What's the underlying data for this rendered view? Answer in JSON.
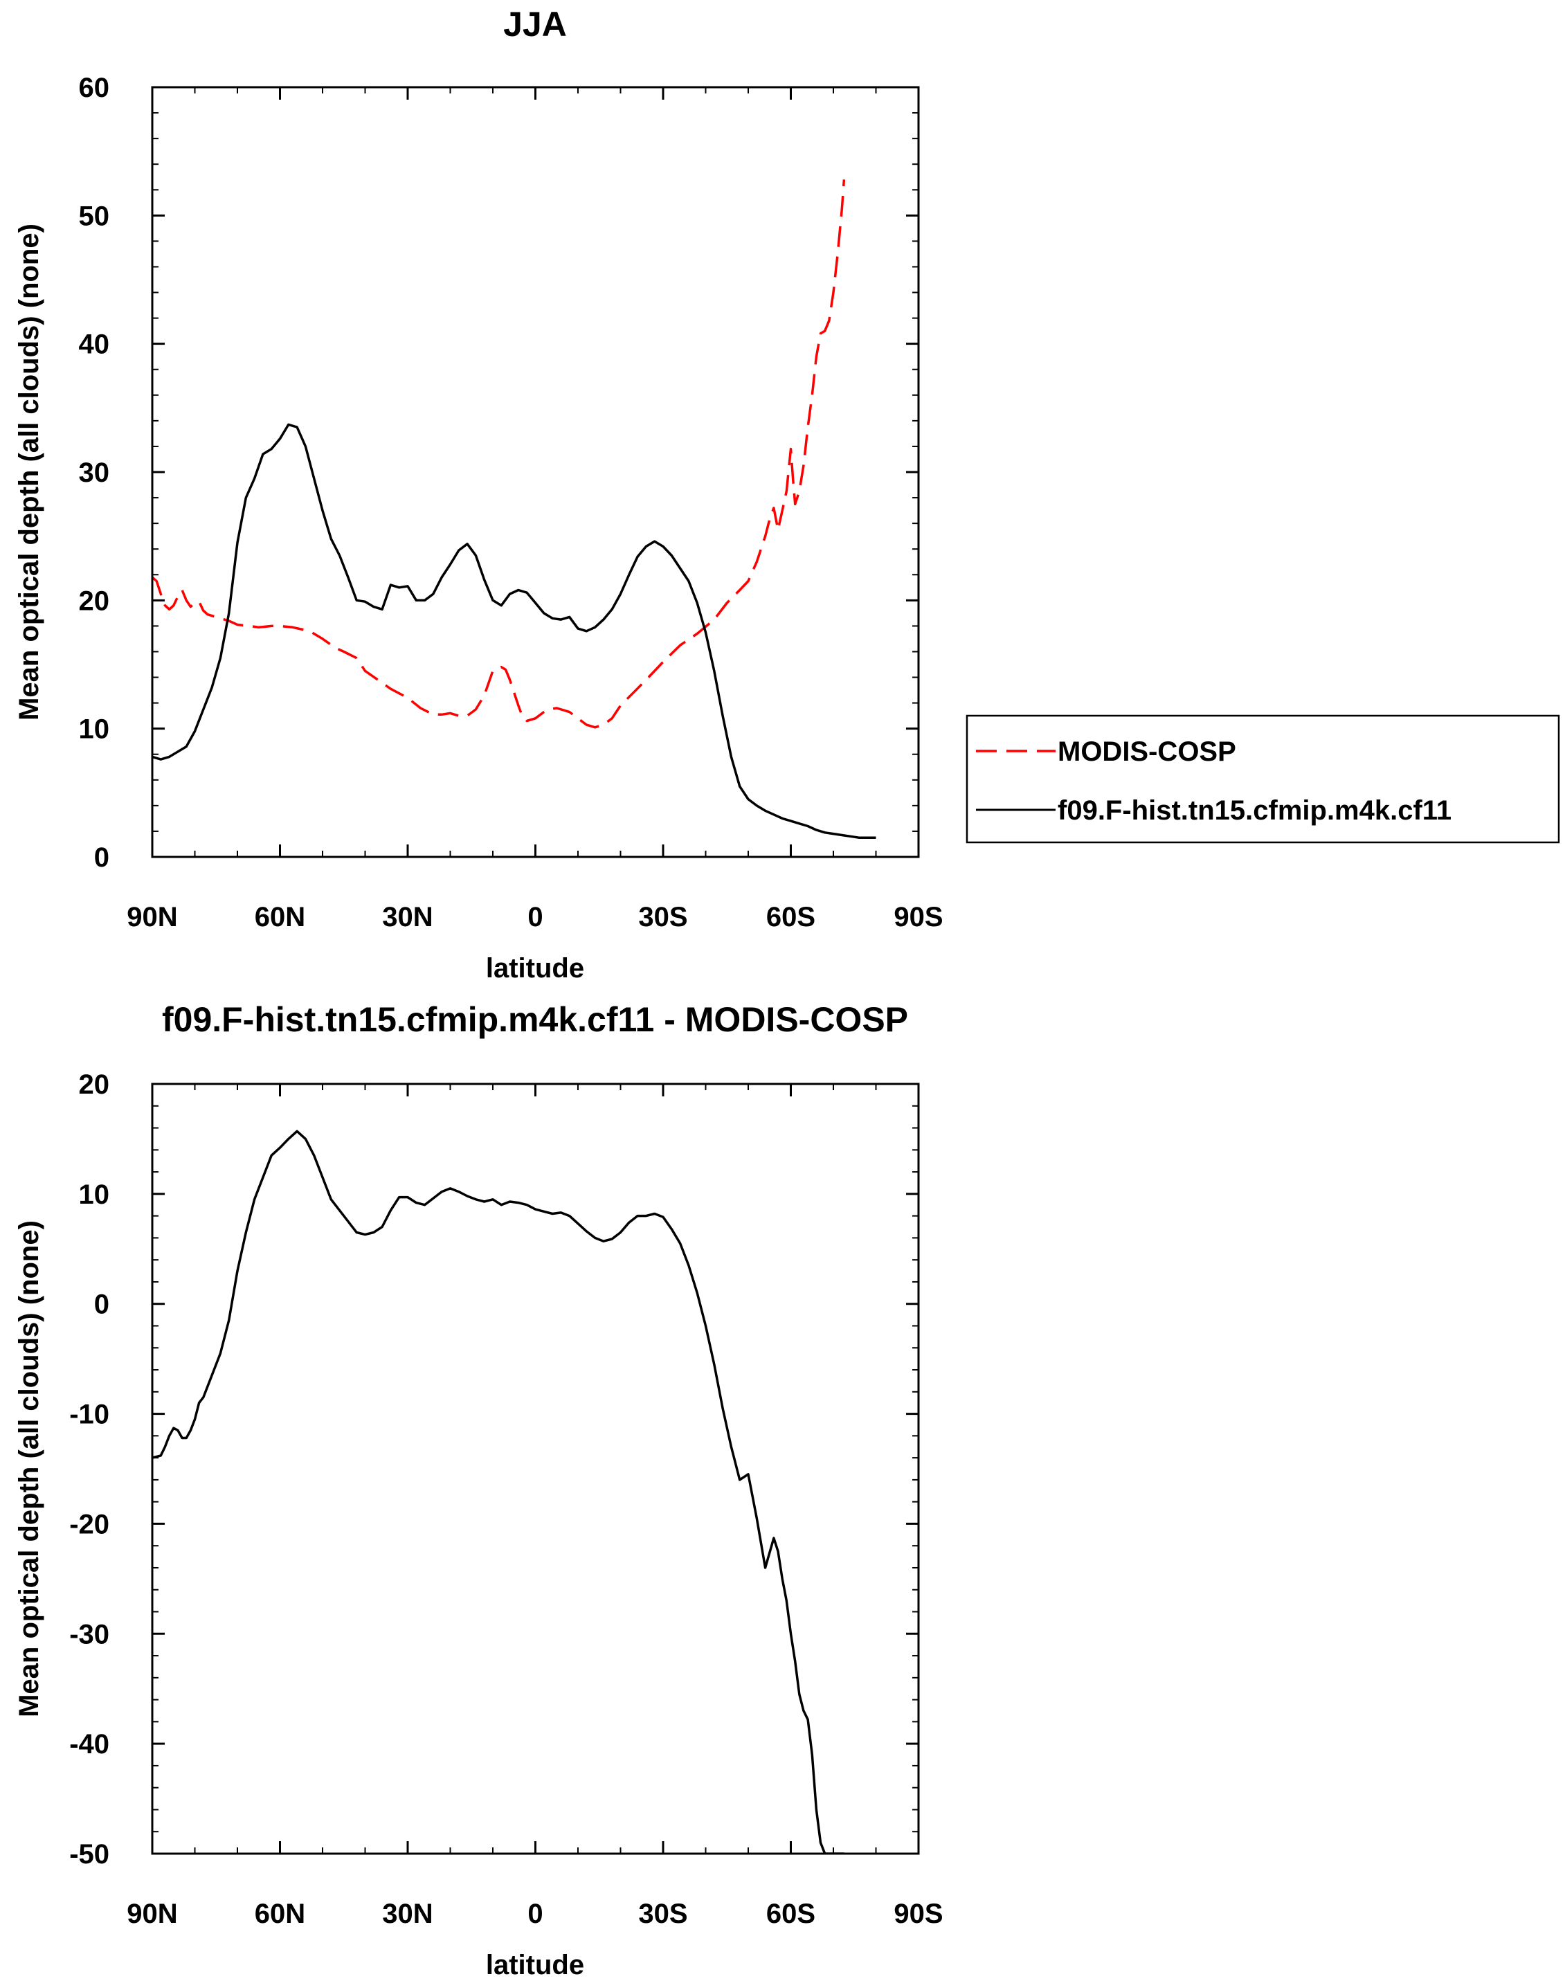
{
  "chart_data": [
    {
      "type": "line",
      "title": "JJA",
      "xlabel": "latitude",
      "ylabel": "Mean optical depth (all clouds) (none)",
      "xlim": [
        90,
        -90
      ],
      "ylim": [
        0,
        60
      ],
      "xticks": [
        90,
        60,
        30,
        0,
        -30,
        -60,
        -90
      ],
      "xtick_labels": [
        "90N",
        "60N",
        "30N",
        "0",
        "30S",
        "60S",
        "90S"
      ],
      "yticks": [
        0,
        10,
        20,
        30,
        40,
        50,
        60
      ],
      "ytick_labels": [
        "0",
        "10",
        "20",
        "30",
        "40",
        "50",
        "60"
      ],
      "legend": {
        "placement": "right",
        "entries": [
          "MODIS-COSP",
          "f09.F-hist.tn15.cfmip.m4k.cf11"
        ]
      },
      "series": [
        {
          "name": "MODIS-COSP",
          "color": "#ff0000",
          "dashed": true,
          "x": [
            90,
            89,
            88,
            87,
            86,
            85,
            84,
            83,
            82,
            81,
            80,
            79,
            78,
            77,
            75,
            72,
            70,
            67,
            65,
            62,
            60,
            57,
            53,
            50,
            47,
            45,
            42,
            40,
            37,
            34,
            30,
            27,
            24,
            22,
            20,
            18,
            16,
            14,
            12,
            10,
            8,
            7,
            6,
            4,
            3,
            2,
            0,
            -2,
            -3,
            -5,
            -8,
            -10,
            -12,
            -14,
            -16,
            -18,
            -20,
            -23,
            -26,
            -30,
            -34,
            -38,
            -42,
            -45,
            -48,
            -50,
            -52,
            -54,
            -55,
            -56,
            -57,
            -58,
            -59,
            -60,
            -60.5,
            -61,
            -62,
            -63,
            -64,
            -65,
            -66,
            -67,
            -68,
            -69,
            -70,
            -71,
            -72,
            -72.5
          ],
          "values": [
            21.8,
            21.5,
            20.5,
            19.6,
            19.3,
            19.6,
            20.3,
            20.8,
            20.0,
            19.5,
            19.8,
            19.9,
            19.2,
            18.9,
            18.7,
            18.4,
            18.1,
            18.0,
            17.9,
            18.0,
            18.0,
            17.9,
            17.6,
            17.0,
            16.3,
            16.0,
            15.5,
            14.5,
            13.8,
            13.1,
            12.4,
            11.6,
            11.1,
            11.1,
            11.2,
            11.0,
            11.0,
            11.5,
            12.6,
            14.5,
            14.8,
            14.6,
            13.8,
            11.8,
            10.9,
            10.6,
            10.8,
            11.3,
            11.5,
            11.6,
            11.3,
            10.8,
            10.3,
            10.1,
            10.3,
            10.8,
            11.8,
            12.8,
            13.8,
            15.2,
            16.5,
            17.4,
            18.5,
            19.8,
            20.8,
            21.5,
            23.0,
            25.0,
            26.3,
            27.2,
            25.5,
            27.0,
            28.5,
            31.8,
            29.5,
            27.5,
            28.5,
            30.5,
            33.5,
            36.0,
            39.0,
            40.8,
            41.0,
            41.8,
            44.0,
            47.0,
            50.5,
            52.8
          ]
        },
        {
          "name": "f09.F-hist.tn15.cfmip.m4k.cf11",
          "color": "#000000",
          "dashed": false,
          "x": [
            90,
            88,
            86,
            84,
            82,
            80,
            78,
            76,
            74,
            72,
            70,
            68,
            66,
            64,
            62,
            60,
            58,
            56,
            54,
            52,
            50,
            48,
            46,
            44,
            42,
            40,
            38,
            36,
            34,
            32,
            30,
            28,
            26,
            24,
            22,
            20,
            18,
            16,
            14,
            12,
            10,
            8,
            6,
            4,
            2,
            0,
            -2,
            -4,
            -6,
            -8,
            -10,
            -12,
            -14,
            -16,
            -18,
            -20,
            -22,
            -24,
            -26,
            -28,
            -30,
            -32,
            -34,
            -36,
            -38,
            -40,
            -42,
            -44,
            -46,
            -48,
            -50,
            -52,
            -54,
            -56,
            -58,
            -60,
            -62,
            -64,
            -66,
            -68,
            -70,
            -72,
            -74,
            -76,
            -78,
            -80
          ],
          "values": [
            7.8,
            7.6,
            7.8,
            8.2,
            8.6,
            9.8,
            11.5,
            13.2,
            15.5,
            19.0,
            24.5,
            28.0,
            29.5,
            31.4,
            31.8,
            32.6,
            33.7,
            33.5,
            32.0,
            29.5,
            27.0,
            24.8,
            23.5,
            21.8,
            20.0,
            19.9,
            19.5,
            19.3,
            21.2,
            21.0,
            21.1,
            20.0,
            20.0,
            20.5,
            21.8,
            22.8,
            23.9,
            24.4,
            23.5,
            21.6,
            20.0,
            19.6,
            20.5,
            20.8,
            20.6,
            19.8,
            19.0,
            18.6,
            18.5,
            18.7,
            17.8,
            17.6,
            17.9,
            18.5,
            19.3,
            20.5,
            22.0,
            23.4,
            24.2,
            24.6,
            24.2,
            23.5,
            22.5,
            21.5,
            19.8,
            17.5,
            14.5,
            11.0,
            7.8,
            5.5,
            4.5,
            4.0,
            3.6,
            3.3,
            3.0,
            2.8,
            2.6,
            2.4,
            2.1,
            1.9,
            1.8,
            1.7,
            1.6,
            1.5,
            1.5,
            1.5
          ]
        }
      ]
    },
    {
      "type": "line",
      "title": "f09.F-hist.tn15.cfmip.m4k.cf11 - MODIS-COSP",
      "xlabel": "latitude",
      "ylabel": "Mean optical depth (all clouds) (none)",
      "xlim": [
        90,
        -90
      ],
      "ylim": [
        -50,
        20
      ],
      "xticks": [
        90,
        60,
        30,
        0,
        -30,
        -60,
        -90
      ],
      "xtick_labels": [
        "90N",
        "60N",
        "30N",
        "0",
        "30S",
        "60S",
        "90S"
      ],
      "yticks": [
        -50,
        -40,
        -30,
        -20,
        -10,
        0,
        10,
        20
      ],
      "ytick_labels": [
        "-50",
        "-40",
        "-30",
        "-20",
        "-10",
        "0",
        "10",
        "20"
      ],
      "series": [
        {
          "name": "f09.F-hist.tn15.cfmip.m4k.cf11 - MODIS-COSP",
          "color": "#000000",
          "dashed": false,
          "x": [
            90,
            88,
            87,
            86,
            85,
            84,
            83,
            82,
            81,
            80,
            79,
            78,
            76,
            74,
            72,
            70,
            68,
            66,
            64,
            62,
            60,
            58,
            56,
            54,
            52,
            50,
            48,
            46,
            44,
            42,
            40,
            38,
            36,
            34,
            32,
            30,
            28,
            26,
            24,
            22,
            20,
            18,
            16,
            14,
            12,
            10,
            8,
            6,
            4,
            2,
            0,
            -2,
            -4,
            -6,
            -8,
            -10,
            -12,
            -14,
            -16,
            -18,
            -20,
            -22,
            -24,
            -26,
            -28,
            -30,
            -32,
            -34,
            -36,
            -38,
            -40,
            -42,
            -44,
            -46,
            -48,
            -50,
            -52,
            -54,
            -56,
            -57,
            -58,
            -59,
            -60,
            -61,
            -62,
            -63,
            -64,
            -65,
            -66,
            -67,
            -68,
            -69,
            -70,
            -71,
            -72,
            -72.5
          ],
          "values": [
            -14.0,
            -13.8,
            -13.0,
            -12.0,
            -11.3,
            -11.5,
            -12.2,
            -12.2,
            -11.5,
            -10.5,
            -9.0,
            -8.5,
            -6.5,
            -4.5,
            -1.5,
            3.0,
            6.5,
            9.5,
            11.5,
            13.5,
            14.2,
            15.0,
            15.7,
            15.0,
            13.5,
            11.5,
            9.5,
            8.5,
            7.5,
            6.5,
            6.3,
            6.5,
            7.0,
            8.5,
            9.7,
            9.7,
            9.2,
            9.0,
            9.6,
            10.2,
            10.5,
            10.2,
            9.8,
            9.5,
            9.3,
            9.5,
            9.0,
            9.3,
            9.2,
            9.0,
            8.6,
            8.4,
            8.2,
            8.3,
            8.0,
            7.3,
            6.6,
            6.0,
            5.7,
            5.9,
            6.5,
            7.4,
            8.0,
            8.0,
            8.2,
            7.9,
            6.8,
            5.5,
            3.5,
            1.0,
            -2.0,
            -5.5,
            -9.5,
            -13.0,
            -16.0,
            -15.5,
            -19.5,
            -24.0,
            -21.3,
            -22.5,
            -25.0,
            -27.0,
            -30.0,
            -32.5,
            -35.5,
            -37.0,
            -37.8,
            -41.0,
            -46.0,
            -49.0,
            -50.0,
            -50.0,
            -50.0,
            -50.0,
            -50.0,
            -50.0
          ]
        }
      ]
    }
  ]
}
